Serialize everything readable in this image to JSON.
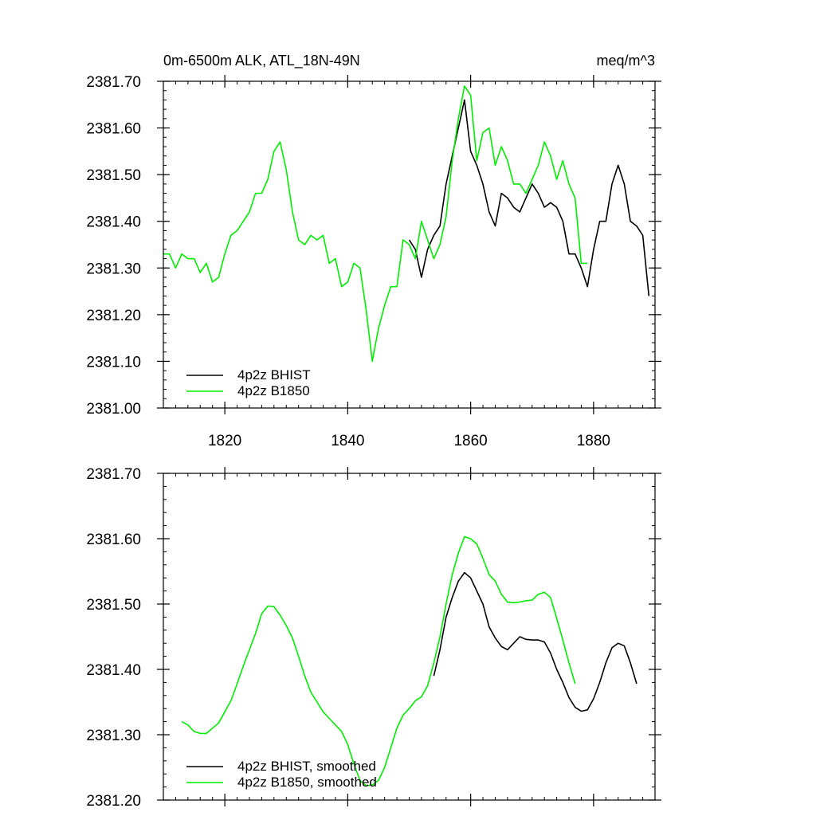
{
  "colors": {
    "bhist": "#000000",
    "b1850": "#00ee00",
    "axis": "#000000",
    "background": "#ffffff"
  },
  "chart_data": [
    {
      "type": "line",
      "title": "0m-6500m ALK, ATL_18N-49N",
      "units": "meq/m^3",
      "xlim": [
        1810,
        1890
      ],
      "ylim": [
        2381.0,
        2381.7
      ],
      "x_ticks": [
        {
          "value": 1820,
          "label": "1820"
        },
        {
          "value": 1840,
          "label": "1840"
        },
        {
          "value": 1860,
          "label": "1860"
        },
        {
          "value": 1880,
          "label": "1880"
        }
      ],
      "y_ticks": [
        {
          "value": 2381.0,
          "label": "2381.00"
        },
        {
          "value": 2381.1,
          "label": "2381.10"
        },
        {
          "value": 2381.2,
          "label": "2381.20"
        },
        {
          "value": 2381.3,
          "label": "2381.30"
        },
        {
          "value": 2381.4,
          "label": "2381.40"
        },
        {
          "value": 2381.5,
          "label": "2381.50"
        },
        {
          "value": 2381.6,
          "label": "2381.60"
        },
        {
          "value": 2381.7,
          "label": "2381.70"
        }
      ],
      "legend_position": "bottom-left",
      "grid": false,
      "series": [
        {
          "name": "4p2z BHIST",
          "color": "#000000",
          "x": [
            1850,
            1851,
            1852,
            1853,
            1854,
            1855,
            1856,
            1857,
            1858,
            1859,
            1860,
            1861,
            1862,
            1863,
            1864,
            1865,
            1866,
            1867,
            1868,
            1869,
            1870,
            1871,
            1872,
            1873,
            1874,
            1875,
            1876,
            1877,
            1878,
            1879,
            1880,
            1881,
            1882,
            1883,
            1884,
            1885,
            1886,
            1887,
            1888,
            1889
          ],
          "y": [
            2381.36,
            2381.34,
            2381.28,
            2381.34,
            2381.37,
            2381.39,
            2381.48,
            2381.54,
            2381.6,
            2381.66,
            2381.55,
            2381.52,
            2381.48,
            2381.42,
            2381.39,
            2381.46,
            2381.45,
            2381.43,
            2381.42,
            2381.45,
            2381.48,
            2381.46,
            2381.43,
            2381.44,
            2381.43,
            2381.4,
            2381.33,
            2381.33,
            2381.3,
            2381.26,
            2381.34,
            2381.4,
            2381.4,
            2381.48,
            2381.52,
            2381.48,
            2381.4,
            2381.39,
            2381.37,
            2381.24
          ]
        },
        {
          "name": "4p2z B1850",
          "color": "#00ee00",
          "x": [
            1810,
            1811,
            1812,
            1813,
            1814,
            1815,
            1816,
            1817,
            1818,
            1819,
            1820,
            1821,
            1822,
            1823,
            1824,
            1825,
            1826,
            1827,
            1828,
            1829,
            1830,
            1831,
            1832,
            1833,
            1834,
            1835,
            1836,
            1837,
            1838,
            1839,
            1840,
            1841,
            1842,
            1843,
            1844,
            1845,
            1846,
            1847,
            1848,
            1849,
            1850,
            1851,
            1852,
            1853,
            1854,
            1855,
            1856,
            1857,
            1858,
            1859,
            1860,
            1861,
            1862,
            1863,
            1864,
            1865,
            1866,
            1867,
            1868,
            1869,
            1870,
            1871,
            1872,
            1873,
            1874,
            1875,
            1876,
            1877,
            1878,
            1879
          ],
          "y": [
            2381.33,
            2381.33,
            2381.3,
            2381.33,
            2381.32,
            2381.32,
            2381.29,
            2381.31,
            2381.27,
            2381.28,
            2381.33,
            2381.37,
            2381.38,
            2381.4,
            2381.42,
            2381.46,
            2381.46,
            2381.49,
            2381.55,
            2381.57,
            2381.51,
            2381.42,
            2381.36,
            2381.35,
            2381.37,
            2381.36,
            2381.37,
            2381.31,
            2381.32,
            2381.26,
            2381.27,
            2381.31,
            2381.3,
            2381.21,
            2381.1,
            2381.17,
            2381.22,
            2381.26,
            2381.26,
            2381.36,
            2381.35,
            2381.32,
            2381.4,
            2381.36,
            2381.32,
            2381.35,
            2381.41,
            2381.53,
            2381.62,
            2381.69,
            2381.67,
            2381.53,
            2381.59,
            2381.6,
            2381.52,
            2381.56,
            2381.53,
            2381.48,
            2381.48,
            2381.46,
            2381.49,
            2381.52,
            2381.57,
            2381.54,
            2381.49,
            2381.53,
            2381.48,
            2381.45,
            2381.31,
            2381.31
          ]
        }
      ]
    },
    {
      "type": "line",
      "title": "",
      "xlim": [
        1810,
        1890
      ],
      "ylim": [
        2381.2,
        2381.7
      ],
      "x_ticks": [
        {
          "value": 1820,
          "label": ""
        },
        {
          "value": 1840,
          "label": ""
        },
        {
          "value": 1860,
          "label": ""
        },
        {
          "value": 1880,
          "label": ""
        }
      ],
      "y_ticks": [
        {
          "value": 2381.2,
          "label": "2381.20"
        },
        {
          "value": 2381.3,
          "label": "2381.30"
        },
        {
          "value": 2381.4,
          "label": "2381.40"
        },
        {
          "value": 2381.5,
          "label": "2381.50"
        },
        {
          "value": 2381.6,
          "label": "2381.60"
        },
        {
          "value": 2381.7,
          "label": "2381.70"
        }
      ],
      "legend_position": "bottom-left",
      "grid": false,
      "series": [
        {
          "name": "4p2z BHIST, smoothed",
          "color": "#000000",
          "x": [
            1854,
            1855,
            1856,
            1857,
            1858,
            1859,
            1860,
            1861,
            1862,
            1863,
            1864,
            1865,
            1866,
            1867,
            1868,
            1869,
            1870,
            1871,
            1872,
            1873,
            1874,
            1875,
            1876,
            1877,
            1878,
            1879,
            1880,
            1881,
            1882,
            1883,
            1884,
            1885,
            1886,
            1887
          ],
          "y": [
            2381.39,
            2381.43,
            2381.48,
            2381.51,
            2381.535,
            2381.548,
            2381.54,
            2381.52,
            2381.5,
            2381.465,
            2381.448,
            2381.435,
            2381.43,
            2381.44,
            2381.45,
            2381.446,
            2381.445,
            2381.445,
            2381.442,
            2381.425,
            2381.4,
            2381.38,
            2381.357,
            2381.342,
            2381.336,
            2381.338,
            2381.355,
            2381.38,
            2381.41,
            2381.433,
            2381.44,
            2381.436,
            2381.41,
            2381.378
          ]
        },
        {
          "name": "4p2z B1850, smoothed",
          "color": "#00ee00",
          "x": [
            1813,
            1814,
            1815,
            1816,
            1817,
            1818,
            1819,
            1820,
            1821,
            1822,
            1823,
            1824,
            1825,
            1826,
            1827,
            1828,
            1829,
            1830,
            1831,
            1832,
            1833,
            1834,
            1835,
            1836,
            1837,
            1838,
            1839,
            1840,
            1841,
            1842,
            1843,
            1844,
            1845,
            1846,
            1847,
            1848,
            1849,
            1850,
            1851,
            1852,
            1853,
            1854,
            1855,
            1856,
            1857,
            1858,
            1859,
            1860,
            1861,
            1862,
            1863,
            1864,
            1865,
            1866,
            1867,
            1868,
            1869,
            1870,
            1871,
            1872,
            1873,
            1874,
            1875,
            1876,
            1877
          ],
          "y": [
            2381.32,
            2381.315,
            2381.305,
            2381.302,
            2381.302,
            2381.31,
            2381.318,
            2381.335,
            2381.352,
            2381.378,
            2381.405,
            2381.43,
            2381.455,
            2381.485,
            2381.497,
            2381.496,
            2381.483,
            2381.467,
            2381.448,
            2381.42,
            2381.39,
            2381.365,
            2381.35,
            2381.335,
            2381.325,
            2381.315,
            2381.305,
            2381.285,
            2381.255,
            2381.23,
            2381.222,
            2381.223,
            2381.23,
            2381.25,
            2381.28,
            2381.31,
            2381.33,
            2381.34,
            2381.352,
            2381.358,
            2381.375,
            2381.41,
            2381.45,
            2381.5,
            2381.545,
            2381.578,
            2381.603,
            2381.6,
            2381.592,
            2381.57,
            2381.545,
            2381.535,
            2381.515,
            2381.503,
            2381.502,
            2381.503,
            2381.505,
            2381.506,
            2381.515,
            2381.518,
            2381.51,
            2381.478,
            2381.445,
            2381.41,
            2381.378
          ]
        }
      ]
    }
  ]
}
